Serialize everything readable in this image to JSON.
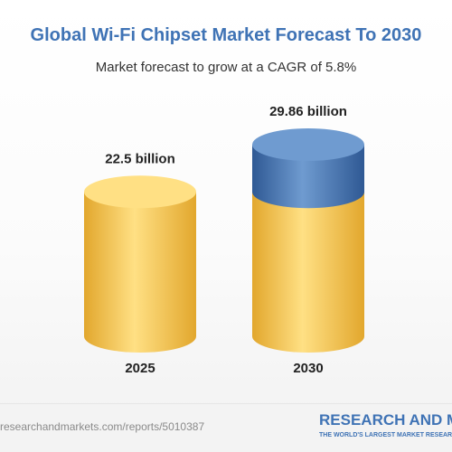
{
  "chart_data": {
    "type": "bar",
    "title": "Global Wi-Fi Chipset Market Forecast To 2030",
    "subtitle": "Market forecast to grow at a CAGR of 5.8%",
    "categories": [
      "2025",
      "2030"
    ],
    "values": [
      22.5,
      29.86
    ],
    "value_labels": [
      "22.5 billion",
      "29.86 billion"
    ],
    "bar_style": "cylinder",
    "colors": {
      "base_light": "#ffe084",
      "base": "#f9c54d",
      "base_dark": "#e2a72d",
      "growth_light": "#6f9bd0",
      "growth": "#3f6fae",
      "growth_dark": "#2f5994"
    },
    "grid": false,
    "legend": "none"
  },
  "footer": {
    "source_url": "researchandmarkets.com/reports/5010387",
    "brand": "RESEARCH AND MARKETS",
    "tagline": "THE WORLD'S LARGEST MARKET RESEARCH STORE"
  },
  "colors": {
    "title": "#3f73b5",
    "subtitle": "#333333",
    "brand": "#3f73b5"
  }
}
